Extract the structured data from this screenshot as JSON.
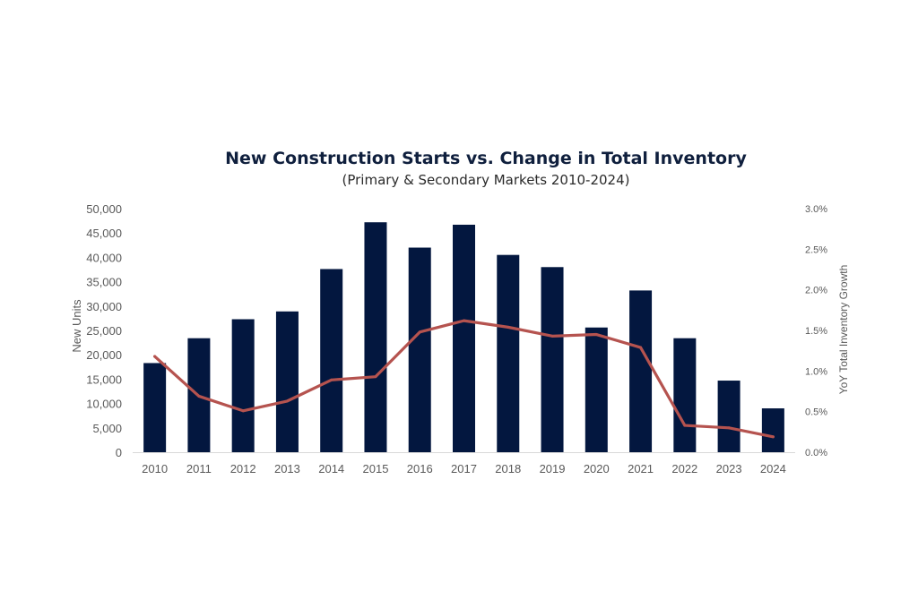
{
  "chart_data": {
    "type": "bar",
    "title": "New Construction Starts vs. Change in Total Inventory",
    "subtitle": "(Primary & Secondary Markets 2010-2024)",
    "categories": [
      "2010",
      "2011",
      "2012",
      "2013",
      "2014",
      "2015",
      "2016",
      "2017",
      "2018",
      "2019",
      "2020",
      "2021",
      "2022",
      "2023",
      "2024"
    ],
    "series": [
      {
        "name": "",
        "type": "bar",
        "axis": "left",
        "color": "#03173f",
        "values": [
          18300,
          23400,
          27300,
          28900,
          37600,
          47200,
          42000,
          46700,
          40500,
          38000,
          25600,
          33200,
          23400,
          14700,
          9000
        ]
      },
      {
        "name": "",
        "type": "line",
        "axis": "right",
        "color": "#b5534f",
        "values": [
          1.18,
          0.69,
          0.51,
          0.63,
          0.89,
          0.93,
          1.48,
          1.62,
          1.54,
          1.43,
          1.45,
          1.29,
          0.33,
          0.3,
          0.19
        ]
      }
    ],
    "ylabel": "New Units",
    "ylabel_right": "YoY Total Inventory Growth",
    "ylim": [
      0,
      50000
    ],
    "ylim_right": [
      0,
      3.0
    ],
    "yticks": [
      "0",
      "5,000",
      "10,000",
      "15,000",
      "20,000",
      "25,000",
      "30,000",
      "35,000",
      "40,000",
      "45,000",
      "50,000"
    ],
    "yticks_right": [
      "0.0%",
      "0.5%",
      "1.0%",
      "1.5%",
      "2.0%",
      "2.5%",
      "3.0%"
    ],
    "grid": false,
    "legend": "none"
  }
}
